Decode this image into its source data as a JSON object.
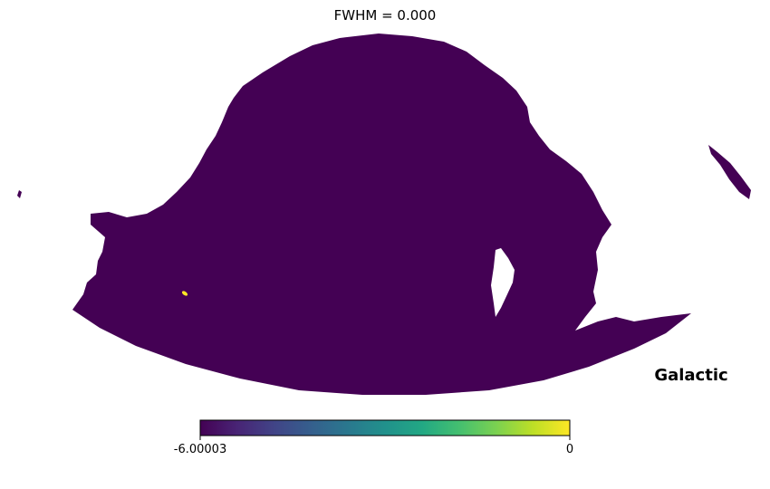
{
  "chart_data": {
    "type": "heatmap",
    "projection": "mollweide",
    "title": "FWHM = 0.000",
    "coord_label": "Galactic",
    "colormap": "viridis",
    "colorbar": {
      "min": -6.00003,
      "max": 0,
      "min_label": "-6.00003",
      "max_label": "0",
      "orientation": "horizontal",
      "placement": "bottom"
    },
    "background_value": -6.00003,
    "hotspot_value": 0,
    "colors": {
      "map_fill": "#440154",
      "hotspot": "#fde725",
      "unseen": "#ffffff"
    }
  }
}
